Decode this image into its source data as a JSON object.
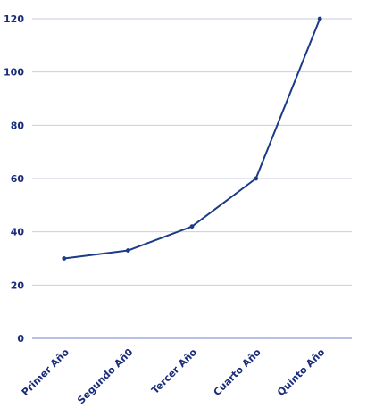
{
  "chart_data": {
    "type": "line",
    "categories": [
      "Primer Año",
      "Segundo Añ0",
      "Tercer Año",
      "Cuarto Año",
      "Quinto Año"
    ],
    "values": [
      30,
      33,
      42,
      60,
      120
    ],
    "y_ticks": [
      "0",
      "20",
      "40",
      "60",
      "80",
      "100",
      "120"
    ],
    "ylim": [
      0,
      120
    ],
    "grid": true,
    "legend": "none",
    "colors": {
      "line": "#1b3a87",
      "grid": "#c7cbe8",
      "axis": "#8e9ad6",
      "text": "#1b2d7a"
    }
  }
}
